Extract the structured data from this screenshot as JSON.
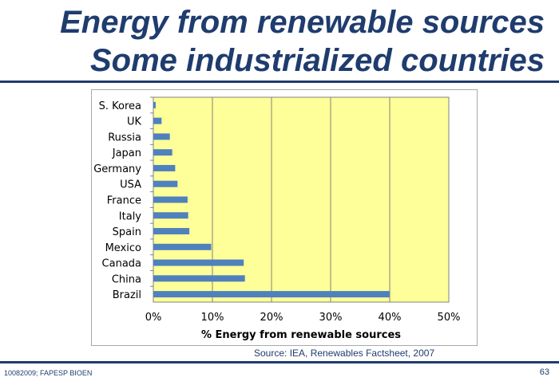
{
  "slide": {
    "title_line1": "Energy from renewable sources",
    "title_line2": "Some industrialized countries",
    "source": "Source: IEA, Renewables Factsheet, 2007",
    "footer": "10082009; FAPESP BIOEN",
    "page_number": "63"
  },
  "colors": {
    "title": "#1f3c6e",
    "plot_background": "#ffff99",
    "bar": "#4f81bd",
    "grid": "#808080"
  },
  "chart_data": {
    "type": "bar",
    "orientation": "horizontal",
    "categories": [
      "S. Korea",
      "UK",
      "Russia",
      "Japan",
      "Germany",
      "USA",
      "France",
      "Italy",
      "Spain",
      "Mexico",
      "Canada",
      "China",
      "Brazil"
    ],
    "values": [
      0.4,
      1.4,
      2.8,
      3.2,
      3.7,
      4.1,
      5.8,
      5.9,
      6.1,
      9.8,
      15.3,
      15.5,
      40
    ],
    "xlabel": "% Energy from renewable sources",
    "ylabel": "",
    "xlim": [
      0,
      50
    ],
    "xticks": [
      "0%",
      "10%",
      "20%",
      "30%",
      "40%",
      "50%"
    ],
    "grid": "vertical",
    "legend": "none"
  }
}
